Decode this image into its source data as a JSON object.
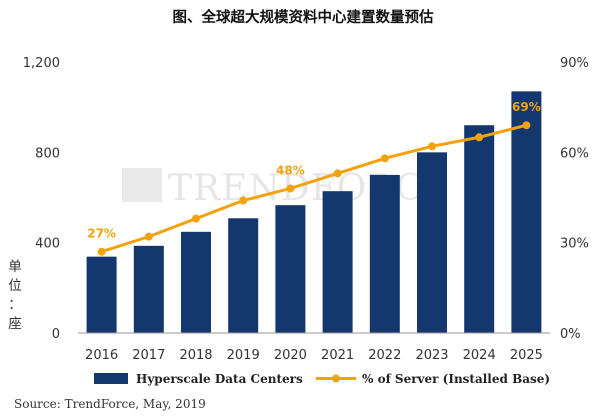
{
  "chart_data": {
    "type": "bar+line",
    "title": "图、全球超大规模资料中心建置数量预估",
    "categories": [
      "2016",
      "2017",
      "2018",
      "2019",
      "2020",
      "2021",
      "2022",
      "2023",
      "2024",
      "2025"
    ],
    "series": [
      {
        "name": "Hyperscale Data Centers",
        "type": "bar",
        "axis": "left",
        "color": "#14386E",
        "values": [
          338,
          386,
          448,
          508,
          566,
          628,
          700,
          800,
          920,
          1070
        ]
      },
      {
        "name": "% of Server (Installed Base)",
        "type": "line",
        "axis": "right",
        "color": "#F2A20C",
        "values": [
          27,
          32,
          38,
          44,
          48,
          53,
          58,
          62,
          65,
          69
        ]
      }
    ],
    "data_labels": [
      {
        "series": "% of Server (Installed Base)",
        "index": 0,
        "text": "27%"
      },
      {
        "series": "% of Server (Installed Base)",
        "index": 4,
        "text": "48%"
      },
      {
        "series": "% of Server (Installed Base)",
        "index": 9,
        "text": "69%"
      }
    ],
    "ylabel": "单位：座",
    "ylim": [
      0,
      1200
    ],
    "yticks": [
      "0",
      "400",
      "800",
      "1,200"
    ],
    "y2lim": [
      0,
      90
    ],
    "y2ticks": [
      "0%",
      "30%",
      "60%",
      "90%"
    ],
    "grid": false,
    "legend_position": "bottom",
    "watermark": "TRENDFORCE",
    "source": "Source: TrendForce, May, 2019"
  }
}
